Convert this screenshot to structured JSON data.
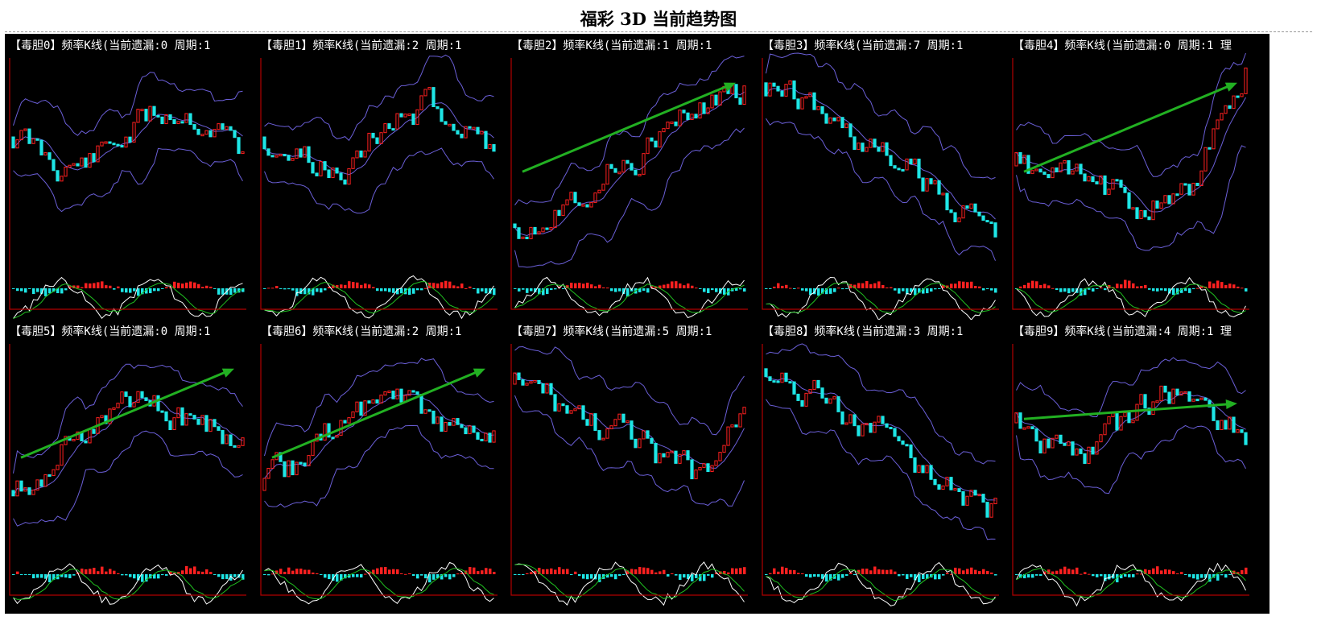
{
  "page": {
    "title": "福彩 3D 当前趋势图"
  },
  "colors": {
    "up_candle": "#ff2020",
    "down_candle": "#1ee6e6",
    "band": "#6b5fd8",
    "trend_arrow": "#22b022",
    "axis": "#b00000",
    "osc_white": "#ffffff",
    "osc_green": "#20c020"
  },
  "panels": [
    {
      "title": "【毒胆0】频率K线(当前遗漏:0 周期:1",
      "bias": "flat",
      "seed": 11,
      "arrow": "none"
    },
    {
      "title": "【毒胆1】频率K线(当前遗漏:2 周期:1",
      "bias": "flat",
      "seed": 23,
      "arrow": "none"
    },
    {
      "title": "【毒胆2】频率K线(当前遗漏:1 周期:1",
      "bias": "up",
      "seed": 37,
      "arrow": "up"
    },
    {
      "title": "【毒胆3】频率K线(当前遗漏:7 周期:1",
      "bias": "down",
      "seed": 41,
      "arrow": "none"
    },
    {
      "title": "【毒胆4】频率K线(当前遗漏:0 周期:1 理",
      "bias": "vshape",
      "seed": 53,
      "arrow": "up"
    },
    {
      "title": "【毒胆5】频率K线(当前遗漏:0 周期:1",
      "bias": "upflat",
      "seed": 61,
      "arrow": "up"
    },
    {
      "title": "【毒胆6】频率K线(当前遗漏:2 周期:1",
      "bias": "upflat",
      "seed": 71,
      "arrow": "up"
    },
    {
      "title": "【毒胆7】频率K线(当前遗漏:5 周期:1",
      "bias": "downrecover",
      "seed": 83,
      "arrow": "none"
    },
    {
      "title": "【毒胆8】频率K线(当前遗漏:3 周期:1",
      "bias": "down",
      "seed": 97,
      "arrow": "none"
    },
    {
      "title": "【毒胆9】频率K线(当前遗漏:4 周期:1 理",
      "bias": "flat",
      "seed": 101,
      "arrow": "flat"
    }
  ]
}
